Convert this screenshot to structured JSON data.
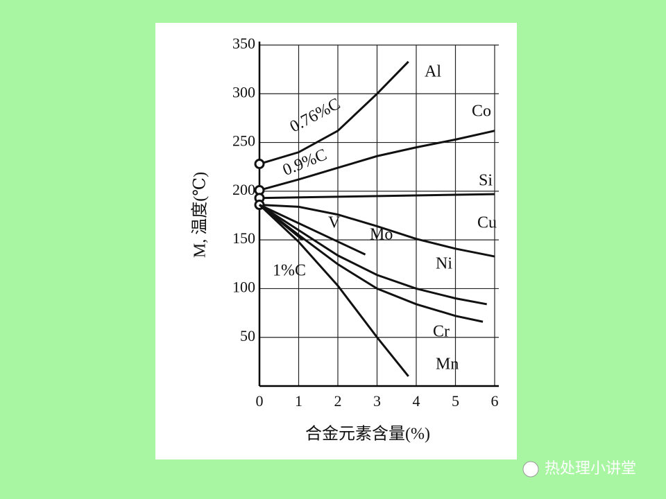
{
  "chart_data": {
    "type": "line",
    "y_label": "M, 温度(℃)",
    "x_label": "合金元素含量(%)",
    "annotations": [
      "0.76%C",
      "0.9%C",
      "1%C"
    ],
    "xlim": [
      0,
      6
    ],
    "xticks": [
      0,
      1,
      2,
      3,
      4,
      5,
      6
    ],
    "ylim": [
      0,
      350
    ],
    "yticks": [
      50,
      100,
      150,
      200,
      250,
      300,
      350
    ],
    "grid": true,
    "series": [
      {
        "name": "Al",
        "color": "#111111",
        "x": [
          0,
          1,
          2,
          3,
          3.8
        ],
        "values": [
          228,
          240,
          262,
          300,
          333
        ]
      },
      {
        "name": "Co",
        "color": "#111111",
        "x": [
          0,
          1,
          2,
          3,
          4,
          5,
          6
        ],
        "values": [
          201,
          212,
          224,
          236,
          245,
          253,
          262
        ]
      },
      {
        "name": "Si",
        "color": "#111111",
        "x": [
          0,
          6
        ],
        "values": [
          193,
          197
        ]
      },
      {
        "name": "Cu",
        "color": "#111111",
        "x": [
          0,
          1,
          2,
          3,
          4,
          5,
          6
        ],
        "values": [
          186,
          184,
          176,
          164,
          151,
          141,
          133
        ]
      },
      {
        "name": "Ni",
        "color": "#111111",
        "x": [
          0,
          1,
          2,
          3,
          4,
          5,
          5.8
        ],
        "values": [
          186,
          160,
          134,
          114,
          100,
          90,
          84
        ]
      },
      {
        "name": "Cr",
        "color": "#111111",
        "x": [
          0,
          1,
          2,
          3,
          4,
          5,
          5.7
        ],
        "values": [
          186,
          155,
          125,
          100,
          84,
          72,
          66
        ]
      },
      {
        "name": "Mn",
        "color": "#111111",
        "x": [
          0,
          1,
          2,
          3,
          3.8
        ],
        "values": [
          186,
          148,
          103,
          50,
          10
        ]
      },
      {
        "name": "V",
        "color": "#111111",
        "x": [
          0,
          1.1
        ],
        "values": [
          186,
          150
        ]
      },
      {
        "name": "Mo",
        "color": "#111111",
        "x": [
          0,
          2.7
        ],
        "values": [
          186,
          135
        ]
      }
    ]
  },
  "watermark": "热处理小讲堂"
}
